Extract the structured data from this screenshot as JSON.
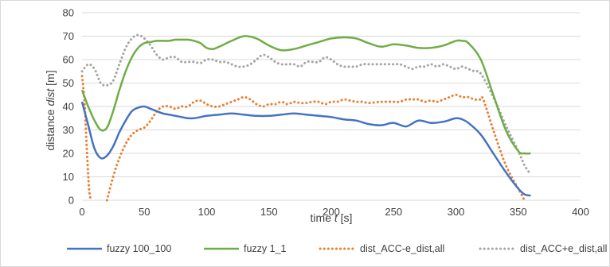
{
  "chart_data": {
    "type": "line",
    "xlabel_prefix": "time ",
    "xlabel_var": "t",
    "xlabel_suffix": " [s]",
    "ylabel_prefix": "distance ",
    "ylabel_var": "dist",
    "ylabel_suffix": " [m]",
    "xlim": [
      0,
      400
    ],
    "ylim": [
      0,
      80
    ],
    "xticks": [
      0,
      50,
      100,
      150,
      200,
      250,
      300,
      350,
      400
    ],
    "yticks": [
      0,
      10,
      20,
      30,
      40,
      50,
      60,
      70,
      80
    ],
    "grid": true,
    "legend_position": "bottom",
    "series": [
      {
        "name": "fuzzy 100_100",
        "color": "#4472c4",
        "style": "solid",
        "points": [
          [
            0,
            42
          ],
          [
            5,
            32
          ],
          [
            10,
            22
          ],
          [
            15,
            18
          ],
          [
            20,
            19
          ],
          [
            25,
            23
          ],
          [
            30,
            29
          ],
          [
            35,
            34
          ],
          [
            40,
            38
          ],
          [
            45,
            39.5
          ],
          [
            50,
            40
          ],
          [
            55,
            39
          ],
          [
            60,
            38
          ],
          [
            65,
            37
          ],
          [
            70,
            36.5
          ],
          [
            75,
            36
          ],
          [
            80,
            35.5
          ],
          [
            85,
            35
          ],
          [
            90,
            35
          ],
          [
            95,
            35.5
          ],
          [
            100,
            36
          ],
          [
            110,
            36.5
          ],
          [
            120,
            37
          ],
          [
            130,
            36.5
          ],
          [
            140,
            36
          ],
          [
            150,
            36
          ],
          [
            160,
            36.5
          ],
          [
            170,
            37
          ],
          [
            180,
            36.5
          ],
          [
            190,
            36
          ],
          [
            200,
            35.5
          ],
          [
            210,
            34.5
          ],
          [
            220,
            34
          ],
          [
            230,
            32.5
          ],
          [
            240,
            32
          ],
          [
            250,
            33
          ],
          [
            260,
            31.5
          ],
          [
            270,
            34
          ],
          [
            280,
            33
          ],
          [
            290,
            33.5
          ],
          [
            300,
            35
          ],
          [
            305,
            34.5
          ],
          [
            310,
            33
          ],
          [
            320,
            28
          ],
          [
            330,
            20
          ],
          [
            340,
            12
          ],
          [
            350,
            5
          ],
          [
            355,
            2.5
          ],
          [
            360,
            2
          ]
        ]
      },
      {
        "name": "fuzzy 1_1",
        "color": "#70ad47",
        "style": "solid",
        "points": [
          [
            0,
            47
          ],
          [
            5,
            40
          ],
          [
            10,
            34
          ],
          [
            15,
            30
          ],
          [
            20,
            31
          ],
          [
            25,
            38
          ],
          [
            30,
            47
          ],
          [
            35,
            55
          ],
          [
            40,
            61
          ],
          [
            45,
            65
          ],
          [
            50,
            67
          ],
          [
            55,
            67.5
          ],
          [
            60,
            68
          ],
          [
            65,
            68
          ],
          [
            70,
            68
          ],
          [
            75,
            68.5
          ],
          [
            80,
            68.5
          ],
          [
            85,
            68.5
          ],
          [
            90,
            68
          ],
          [
            95,
            67
          ],
          [
            100,
            65
          ],
          [
            105,
            64.5
          ],
          [
            110,
            65.5
          ],
          [
            120,
            68
          ],
          [
            130,
            70
          ],
          [
            140,
            69
          ],
          [
            150,
            66
          ],
          [
            160,
            64
          ],
          [
            170,
            64.5
          ],
          [
            180,
            66
          ],
          [
            190,
            67.5
          ],
          [
            200,
            69
          ],
          [
            210,
            69.5
          ],
          [
            220,
            69
          ],
          [
            230,
            67
          ],
          [
            240,
            65.5
          ],
          [
            250,
            66.5
          ],
          [
            260,
            66
          ],
          [
            270,
            65
          ],
          [
            280,
            65
          ],
          [
            290,
            66
          ],
          [
            300,
            68
          ],
          [
            305,
            68
          ],
          [
            310,
            67
          ],
          [
            320,
            60
          ],
          [
            330,
            45
          ],
          [
            340,
            30
          ],
          [
            350,
            21
          ],
          [
            355,
            20
          ],
          [
            360,
            20
          ]
        ]
      },
      {
        "name": "dist_ACC-e_dist,all",
        "color": "#ed7d31",
        "style": "dotted",
        "points": [
          [
            0,
            53
          ],
          [
            2,
            42
          ],
          [
            4,
            20
          ],
          [
            6,
            3
          ],
          [
            8,
            0
          ]
        ]
      },
      {
        "name": "dist_ACC-e_dist,all",
        "color": "#ed7d31",
        "style": "dotted",
        "legend": false,
        "points": [
          [
            20,
            0
          ],
          [
            25,
            10
          ],
          [
            30,
            18
          ],
          [
            35,
            24
          ],
          [
            40,
            28
          ],
          [
            45,
            30
          ],
          [
            50,
            31
          ],
          [
            55,
            34
          ],
          [
            60,
            38
          ],
          [
            65,
            40
          ],
          [
            70,
            40
          ],
          [
            75,
            39
          ],
          [
            80,
            40
          ],
          [
            85,
            40
          ],
          [
            90,
            42
          ],
          [
            95,
            42.5
          ],
          [
            100,
            41
          ],
          [
            105,
            40
          ],
          [
            110,
            40
          ],
          [
            115,
            41
          ],
          [
            120,
            42
          ],
          [
            125,
            43
          ],
          [
            130,
            44
          ],
          [
            135,
            43
          ],
          [
            140,
            41
          ],
          [
            145,
            40
          ],
          [
            150,
            41
          ],
          [
            155,
            41
          ],
          [
            160,
            42
          ],
          [
            165,
            41
          ],
          [
            170,
            42
          ],
          [
            175,
            41.5
          ],
          [
            180,
            41.5
          ],
          [
            185,
            42
          ],
          [
            190,
            42
          ],
          [
            195,
            41
          ],
          [
            200,
            42
          ],
          [
            205,
            42
          ],
          [
            210,
            43
          ],
          [
            215,
            42.5
          ],
          [
            220,
            42
          ],
          [
            225,
            42
          ],
          [
            230,
            41.5
          ],
          [
            240,
            42
          ],
          [
            250,
            42
          ],
          [
            255,
            42
          ],
          [
            260,
            43
          ],
          [
            265,
            43
          ],
          [
            270,
            43
          ],
          [
            275,
            42
          ],
          [
            280,
            42.5
          ],
          [
            285,
            42
          ],
          [
            290,
            43
          ],
          [
            295,
            44
          ],
          [
            300,
            45
          ],
          [
            305,
            44
          ],
          [
            310,
            44
          ],
          [
            315,
            43
          ],
          [
            320,
            43
          ],
          [
            322,
            43
          ],
          [
            330,
            30
          ],
          [
            340,
            15
          ],
          [
            350,
            5
          ],
          [
            355,
            0
          ]
        ]
      },
      {
        "name": "dist_ACC+e_dist,all",
        "color": "#a5a5a5",
        "style": "dotted",
        "points": [
          [
            0,
            55
          ],
          [
            5,
            58
          ],
          [
            10,
            56
          ],
          [
            15,
            50
          ],
          [
            20,
            49
          ],
          [
            25,
            51
          ],
          [
            30,
            58
          ],
          [
            35,
            65
          ],
          [
            40,
            69
          ],
          [
            45,
            70.5
          ],
          [
            50,
            69
          ],
          [
            55,
            66
          ],
          [
            60,
            62
          ],
          [
            65,
            60
          ],
          [
            70,
            61
          ],
          [
            75,
            61
          ],
          [
            80,
            59
          ],
          [
            85,
            59
          ],
          [
            90,
            59
          ],
          [
            95,
            58.5
          ],
          [
            100,
            60
          ],
          [
            105,
            60
          ],
          [
            110,
            59
          ],
          [
            115,
            59
          ],
          [
            120,
            58
          ],
          [
            125,
            57
          ],
          [
            130,
            57
          ],
          [
            135,
            58
          ],
          [
            140,
            60
          ],
          [
            145,
            62
          ],
          [
            150,
            61
          ],
          [
            155,
            59
          ],
          [
            160,
            58
          ],
          [
            165,
            58
          ],
          [
            170,
            58
          ],
          [
            175,
            57
          ],
          [
            180,
            59
          ],
          [
            185,
            59
          ],
          [
            190,
            59
          ],
          [
            195,
            61
          ],
          [
            200,
            60
          ],
          [
            205,
            58
          ],
          [
            210,
            57
          ],
          [
            215,
            57
          ],
          [
            220,
            57
          ],
          [
            225,
            58
          ],
          [
            230,
            58
          ],
          [
            240,
            58
          ],
          [
            250,
            58
          ],
          [
            255,
            58
          ],
          [
            260,
            57
          ],
          [
            265,
            56
          ],
          [
            270,
            57
          ],
          [
            275,
            57
          ],
          [
            280,
            58
          ],
          [
            285,
            57
          ],
          [
            290,
            58
          ],
          [
            295,
            57
          ],
          [
            300,
            56
          ],
          [
            305,
            57
          ],
          [
            310,
            56
          ],
          [
            315,
            55
          ],
          [
            320,
            54
          ],
          [
            330,
            44
          ],
          [
            340,
            32
          ],
          [
            350,
            21
          ],
          [
            355,
            15
          ],
          [
            360,
            11
          ]
        ]
      }
    ]
  }
}
